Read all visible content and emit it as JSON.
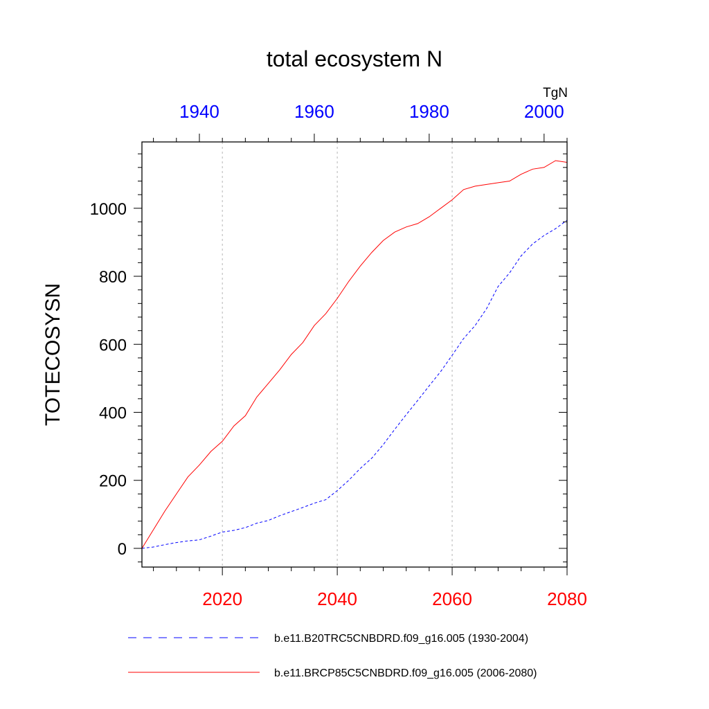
{
  "chart_data": {
    "type": "line",
    "title": "total ecosystem N",
    "ylabel": "TOTECOSYSN",
    "units_label": "TgN",
    "ylim": [
      -55,
      1195
    ],
    "yticks": [
      0,
      200,
      400,
      600,
      800,
      1000
    ],
    "bottom_axis": {
      "range": [
        2006,
        2080
      ],
      "ticks": [
        2020,
        2040,
        2060,
        2080
      ],
      "tick_labels": [
        "2020",
        "2040",
        "2060",
        "2080"
      ],
      "color": "#ff0000"
    },
    "top_axis": {
      "range": [
        1930,
        2004
      ],
      "ticks": [
        1940,
        1960,
        1980,
        2000
      ],
      "tick_labels": [
        "1940",
        "1960",
        "1980",
        "2000"
      ],
      "color": "#0000ff"
    },
    "gridlines_x": [
      2020,
      2040,
      2060
    ],
    "series": [
      {
        "name": "b.e11.B20TRC5CNBDRD.f09_g16.005 (1930-2004)",
        "axis": "top",
        "color": "#0000ff",
        "dash": "dashed",
        "x": [
          1930,
          1932,
          1934,
          1936,
          1938,
          1940,
          1942,
          1944,
          1946,
          1948,
          1950,
          1952,
          1954,
          1956,
          1958,
          1960,
          1962,
          1964,
          1966,
          1968,
          1970,
          1972,
          1974,
          1976,
          1978,
          1980,
          1982,
          1984,
          1986,
          1988,
          1990,
          1992,
          1994,
          1996,
          1998,
          2000,
          2002,
          2004
        ],
        "y": [
          0,
          4,
          11,
          17,
          22,
          25,
          36,
          48,
          53,
          61,
          74,
          82,
          96,
          108,
          120,
          133,
          143,
          170,
          200,
          235,
          265,
          305,
          350,
          393,
          435,
          478,
          520,
          568,
          617,
          655,
          705,
          770,
          810,
          860,
          895,
          920,
          940,
          965
        ]
      },
      {
        "name": "b.e11.BRCP85C5CNBDRD.f09_g16.005 (2006-2080)",
        "axis": "bottom",
        "color": "#ff0000",
        "dash": "solid",
        "x": [
          2006,
          2008,
          2010,
          2012,
          2014,
          2016,
          2018,
          2020,
          2022,
          2024,
          2026,
          2028,
          2030,
          2032,
          2034,
          2036,
          2038,
          2040,
          2042,
          2044,
          2046,
          2048,
          2050,
          2052,
          2054,
          2056,
          2058,
          2060,
          2062,
          2064,
          2066,
          2068,
          2070,
          2072,
          2074,
          2076,
          2078,
          2080
        ],
        "y": [
          0,
          55,
          110,
          160,
          210,
          245,
          285,
          315,
          360,
          390,
          445,
          485,
          525,
          570,
          605,
          655,
          690,
          735,
          785,
          830,
          870,
          905,
          930,
          945,
          955,
          975,
          1000,
          1025,
          1055,
          1065,
          1070,
          1075,
          1080,
          1100,
          1115,
          1120,
          1140,
          1135
        ]
      }
    ],
    "legend": {
      "position": "bottom",
      "entries": [
        "b.e11.B20TRC5CNBDRD.f09_g16.005 (1930-2004)",
        "b.e11.BRCP85C5CNBDRD.f09_g16.005 (2006-2080)"
      ]
    }
  }
}
